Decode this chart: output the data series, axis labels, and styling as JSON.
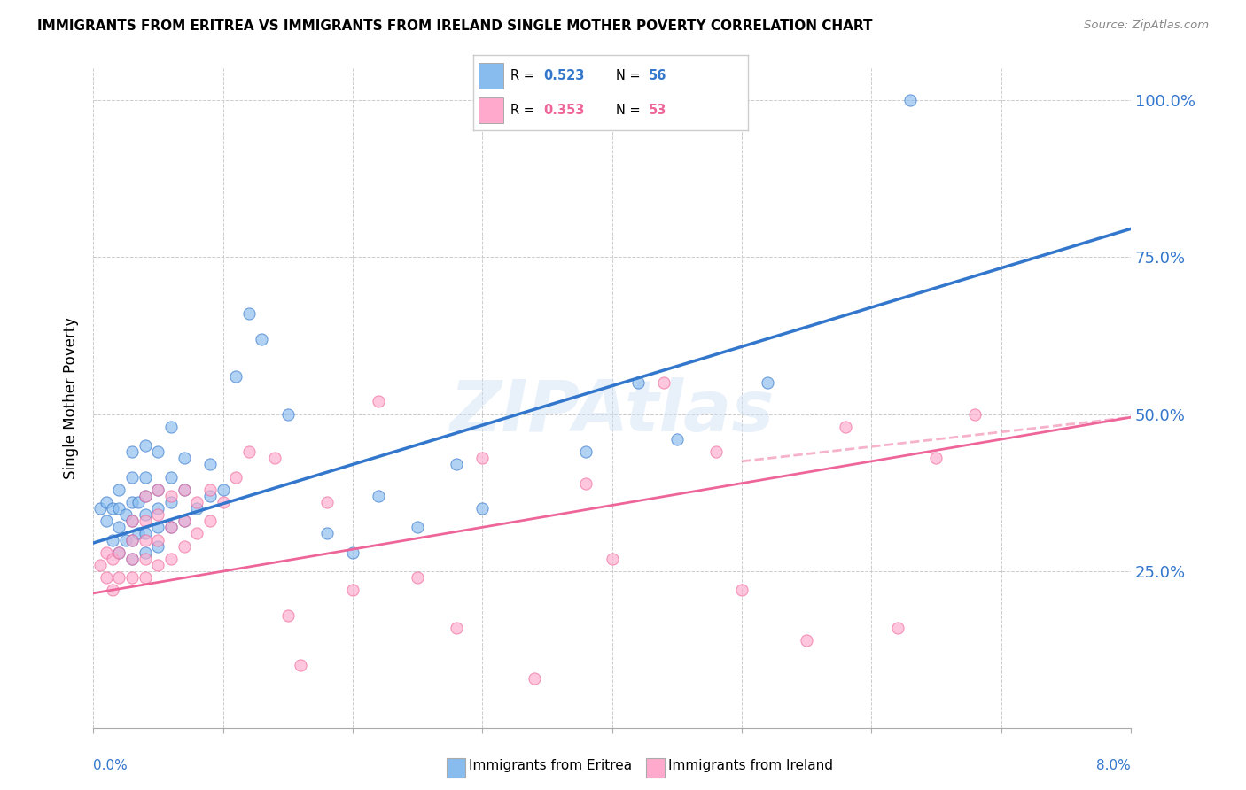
{
  "title": "IMMIGRANTS FROM ERITREA VS IMMIGRANTS FROM IRELAND SINGLE MOTHER POVERTY CORRELATION CHART",
  "source": "Source: ZipAtlas.com",
  "ylabel": "Single Mother Poverty",
  "legend_blue_r": "R = 0.523",
  "legend_blue_n": "N = 56",
  "legend_pink_r": "R = 0.353",
  "legend_pink_n": "N = 53",
  "legend_label_blue": "Immigrants from Eritrea",
  "legend_label_pink": "Immigrants from Ireland",
  "watermark": "ZIPAtlas",
  "blue_color": "#88bbee",
  "pink_color": "#ffaacc",
  "blue_line_color": "#3377cc",
  "pink_line_color": "#ee6699",
  "xlim": [
    0.0,
    0.08
  ],
  "ylim": [
    0.0,
    1.05
  ],
  "blue_line_x": [
    0.0,
    0.08
  ],
  "blue_line_y": [
    0.295,
    0.795
  ],
  "pink_line_x": [
    0.0,
    0.08
  ],
  "pink_line_y": [
    0.215,
    0.495
  ],
  "blue_scatter_x": [
    0.0005,
    0.001,
    0.001,
    0.0015,
    0.0015,
    0.002,
    0.002,
    0.002,
    0.002,
    0.0025,
    0.0025,
    0.003,
    0.003,
    0.003,
    0.003,
    0.003,
    0.003,
    0.0035,
    0.0035,
    0.004,
    0.004,
    0.004,
    0.004,
    0.004,
    0.004,
    0.005,
    0.005,
    0.005,
    0.005,
    0.005,
    0.006,
    0.006,
    0.006,
    0.006,
    0.007,
    0.007,
    0.007,
    0.008,
    0.009,
    0.009,
    0.01,
    0.011,
    0.012,
    0.013,
    0.015,
    0.018,
    0.02,
    0.022,
    0.025,
    0.028,
    0.03,
    0.038,
    0.042,
    0.045,
    0.052,
    0.063
  ],
  "blue_scatter_y": [
    0.35,
    0.33,
    0.36,
    0.3,
    0.35,
    0.28,
    0.32,
    0.35,
    0.38,
    0.3,
    0.34,
    0.27,
    0.3,
    0.33,
    0.36,
    0.4,
    0.44,
    0.31,
    0.36,
    0.28,
    0.31,
    0.34,
    0.37,
    0.4,
    0.45,
    0.29,
    0.32,
    0.35,
    0.38,
    0.44,
    0.32,
    0.36,
    0.4,
    0.48,
    0.33,
    0.38,
    0.43,
    0.35,
    0.37,
    0.42,
    0.38,
    0.56,
    0.66,
    0.62,
    0.5,
    0.31,
    0.28,
    0.37,
    0.32,
    0.42,
    0.35,
    0.44,
    0.55,
    0.46,
    0.55,
    1.0
  ],
  "pink_scatter_x": [
    0.0005,
    0.001,
    0.001,
    0.0015,
    0.0015,
    0.002,
    0.002,
    0.003,
    0.003,
    0.003,
    0.003,
    0.004,
    0.004,
    0.004,
    0.004,
    0.004,
    0.005,
    0.005,
    0.005,
    0.005,
    0.006,
    0.006,
    0.006,
    0.007,
    0.007,
    0.007,
    0.008,
    0.008,
    0.009,
    0.009,
    0.01,
    0.011,
    0.012,
    0.014,
    0.015,
    0.016,
    0.018,
    0.02,
    0.022,
    0.025,
    0.028,
    0.03,
    0.034,
    0.038,
    0.04,
    0.044,
    0.048,
    0.05,
    0.055,
    0.058,
    0.062,
    0.065,
    0.068
  ],
  "pink_scatter_y": [
    0.26,
    0.24,
    0.28,
    0.22,
    0.27,
    0.24,
    0.28,
    0.24,
    0.27,
    0.3,
    0.33,
    0.24,
    0.27,
    0.3,
    0.33,
    0.37,
    0.26,
    0.3,
    0.34,
    0.38,
    0.27,
    0.32,
    0.37,
    0.29,
    0.33,
    0.38,
    0.31,
    0.36,
    0.33,
    0.38,
    0.36,
    0.4,
    0.44,
    0.43,
    0.18,
    0.1,
    0.36,
    0.22,
    0.52,
    0.24,
    0.16,
    0.43,
    0.08,
    0.39,
    0.27,
    0.55,
    0.44,
    0.22,
    0.14,
    0.48,
    0.16,
    0.43,
    0.5
  ]
}
